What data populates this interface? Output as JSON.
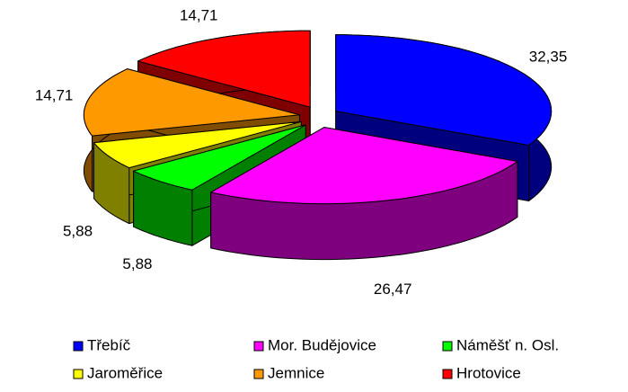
{
  "chart_data": {
    "type": "pie",
    "categories": [
      "Třebíč",
      "Mor. Budějovice",
      "Náměšť n. Osl.",
      "Jaroměřice",
      "Jemnice",
      "Hrotovice"
    ],
    "values": [
      32.35,
      26.47,
      5.88,
      5.88,
      14.71,
      14.71
    ],
    "value_labels": [
      "32,35",
      "26,47",
      "5,88",
      "5,88",
      "14,71",
      "14,71"
    ],
    "colors": [
      "#0000ff",
      "#ff00ff",
      "#00ff00",
      "#ffff00",
      "#ff9900",
      "#ff0000"
    ],
    "legend": "bottom"
  }
}
